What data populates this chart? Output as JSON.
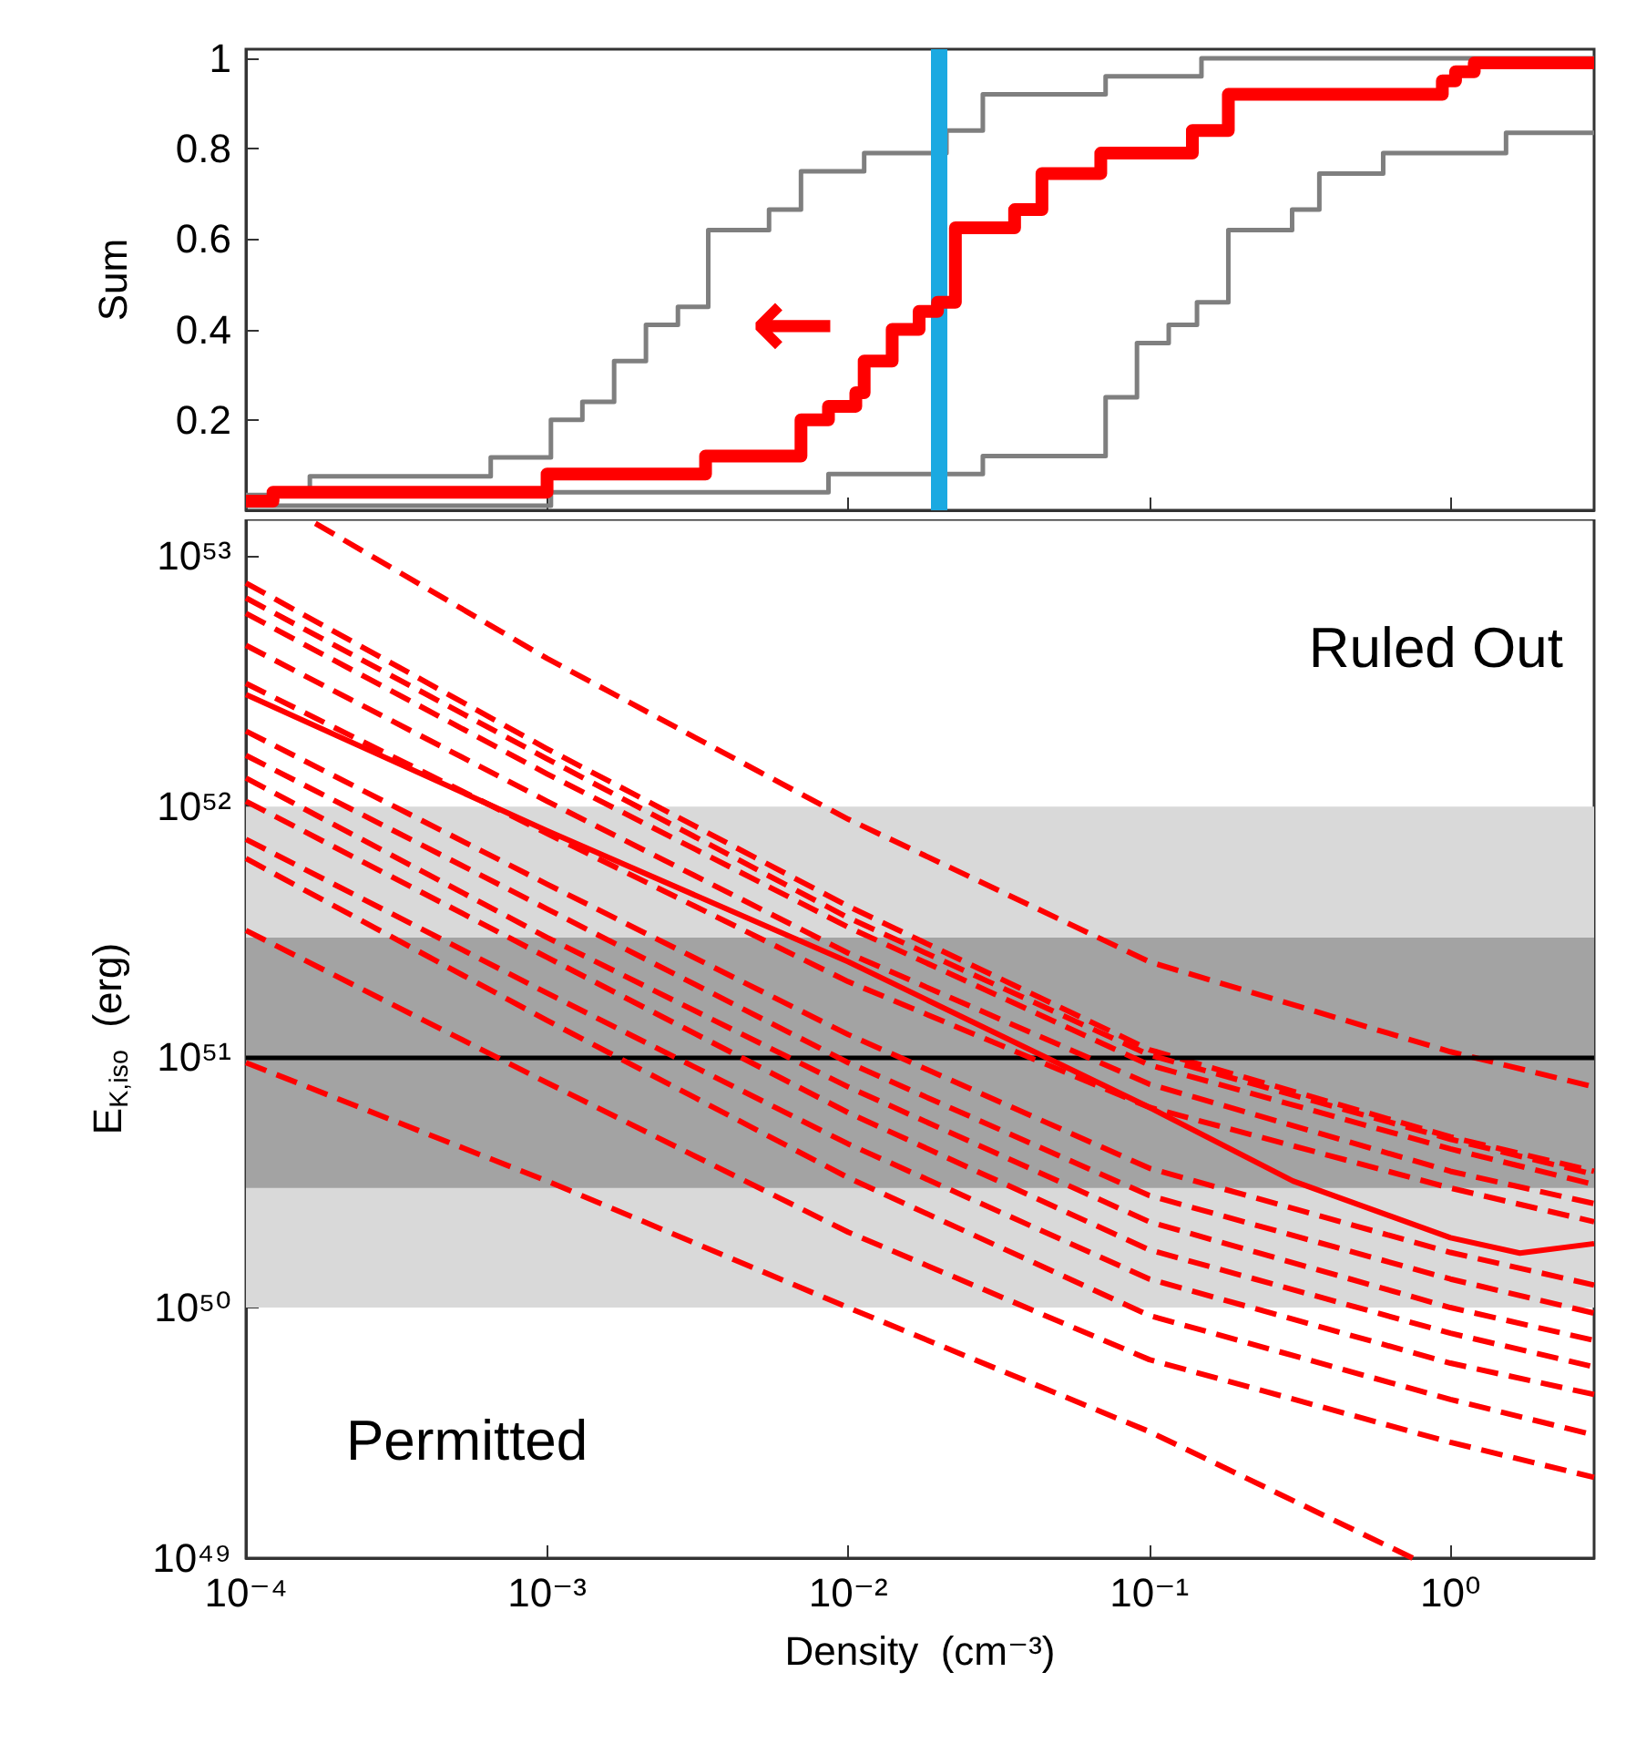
{
  "chart_data": [
    {
      "type": "step",
      "ylabel": "Sum",
      "log": "x",
      "tick_labels": "y",
      "xlim": [
        0.0001,
        3
      ],
      "xticks": [
        {
          "value": 0.0001,
          "label": null
        },
        {
          "value": 0.001,
          "label": null
        },
        {
          "value": 0.01,
          "label": null
        },
        {
          "value": 0.1,
          "label": null
        },
        {
          "value": 1,
          "label": null
        }
      ],
      "ylim": [
        0,
        1.02
      ],
      "yticks": [
        0.2,
        0.4,
        0.6,
        0.8,
        1
      ],
      "ref_lines": [
        {
          "axis": "x",
          "value": 0.02,
          "color": "#1ba9e1"
        }
      ],
      "annotations": [
        "←"
      ],
      "series": [
        {
          "color": "#7f7f7f",
          "x": [
            0.0001,
            0.000163,
            0.00065,
            0.00103,
            0.00131,
            0.00167,
            0.00213,
            0.00272,
            0.00343,
            0.00546,
            0.00697,
            0.0113,
            0.0212,
            0.028,
            0.0716,
            0.149,
            3
          ],
          "values": [
            0.034,
            0.075,
            0.117,
            0.2,
            0.24,
            0.33,
            0.41,
            0.45,
            0.62,
            0.665,
            0.75,
            0.79,
            0.84,
            0.92,
            0.96,
            1,
            1
          ]
        },
        {
          "color": "#7f7f7f",
          "x": [
            0.0001,
            0.00103,
            0.0086,
            0.028,
            0.0716,
            0.091,
            0.116,
            0.144,
            0.183,
            0.298,
            0.367,
            0.598,
            1.53,
            3
          ],
          "values": [
            0.01,
            0.04,
            0.08,
            0.12,
            0.25,
            0.37,
            0.41,
            0.46,
            0.62,
            0.665,
            0.745,
            0.79,
            0.835,
            0.835
          ]
        },
        {
          "color": "#ff0000",
          "x": [
            0.0001,
            0.000123,
            0.001,
            0.00336,
            0.00697,
            0.0086,
            0.0106,
            0.0113,
            0.014,
            0.0172,
            0.0198,
            0.0227,
            0.0357,
            0.044,
            0.069,
            0.139,
            0.183,
            0.94,
            1.04,
            1.2,
            3
          ],
          "values": [
            0.02,
            0.04,
            0.08,
            0.12,
            0.2,
            0.23,
            0.26,
            0.33,
            0.4,
            0.44,
            0.46,
            0.625,
            0.665,
            0.745,
            0.79,
            0.84,
            0.92,
            0.95,
            0.97,
            0.99,
            0.99
          ]
        }
      ]
    },
    {
      "type": "line",
      "xlabel": "Density  (cm⁻³)",
      "ylabel": "E$_{K,iso}$  (erg)",
      "log": "xy",
      "line_style": "dashed",
      "xlim": [
        0.0001,
        3
      ],
      "xticks": [
        {
          "value": 0.0001,
          "label": "10⁻⁴"
        },
        {
          "value": 0.001,
          "label": "10⁻³"
        },
        {
          "value": 0.01,
          "label": "10⁻²"
        },
        {
          "value": 0.1,
          "label": "10⁻¹"
        },
        {
          "value": 1,
          "label": "10⁰"
        }
      ],
      "ylim": [
        1e+49,
        1.4e+53
      ],
      "yticks": [
        {
          "value": 1e+49,
          "label": "10⁴⁹"
        },
        {
          "value": 1e+50,
          "label": "10⁵⁰"
        },
        {
          "value": 1e+51,
          "label": "10⁵¹"
        },
        {
          "value": 1e+52,
          "label": "10⁵²"
        },
        {
          "value": 1e+53,
          "label": "10⁵³"
        }
      ],
      "bands": [
        {
          "axis": "y",
          "from": 1e+50,
          "to": 1e+52,
          "color": "#d9d9d9"
        },
        {
          "axis": "y",
          "from": 3e+50,
          "to": 3e+51,
          "color": "#a3a3a3"
        }
      ],
      "ref_lines": [
        {
          "axis": "y",
          "value": 1e+51,
          "color": "#000000"
        }
      ],
      "annotations": [
        "Ruled Out",
        "Permitted"
      ],
      "series": [
        {
          "color": "#ff0000",
          "x": [
            0.00017,
            0.001,
            0.01,
            0.1,
            1,
            3
          ],
          "values": [
            1.35e+53,
            3.9e+52,
            8.9e+51,
            2.4e+51,
            1.05e+51,
            7.6e+50
          ]
        },
        {
          "color": "#ff0000",
          "x": [
            0.0001,
            0.001,
            0.01,
            0.1,
            1,
            3
          ],
          "values": [
            7.8e+52,
            1.7e+52,
            4e+51,
            1.07e+51,
            4.8e+50,
            3.5e+50
          ]
        },
        {
          "color": "#ff0000",
          "x": [
            0.0001,
            0.001,
            0.01,
            0.1,
            1,
            3
          ],
          "values": [
            6.8e+52,
            1.55e+52,
            3.6e+51,
            1.02e+51,
            4.7e+50,
            3.4e+50
          ]
        },
        {
          "color": "#ff0000",
          "x": [
            0.0001,
            0.001,
            0.01,
            0.1,
            1,
            3
          ],
          "values": [
            5.9e+52,
            1.35e+52,
            3.3e+51,
            9.3e+50,
            4.3e+50,
            3.1e+50
          ]
        },
        {
          "color": "#ff0000",
          "x": [
            0.0001,
            0.001,
            0.01,
            0.1,
            1,
            3
          ],
          "values": [
            4.4e+52,
            1.05e+52,
            2.6e+51,
            7.8e+50,
            3.5e+50,
            2.6e+50
          ]
        },
        {
          "color": "#ff0000",
          "x": [
            0.0001,
            0.001,
            0.01,
            0.1,
            1,
            3
          ],
          "values": [
            3.1e+52,
            7.8e+51,
            2e+51,
            6.3e+50,
            3e+50,
            2.2e+50
          ]
        },
        {
          "color": "#ff0000",
          "line_style": "solid",
          "x": [
            0.0001,
            0.001,
            0.01,
            0.1,
            0.3,
            1,
            1.7,
            3
          ],
          "values": [
            2.8e+52,
            8e+51,
            2.4e+51,
            6.3e+50,
            3.2e+50,
            1.9e+50,
            1.65e+50,
            1.8e+50
          ]
        },
        {
          "color": "#ff0000",
          "x": [
            0.0001,
            0.001,
            0.01,
            0.1,
            1,
            3
          ],
          "values": [
            2e+52,
            4.9e+51,
            1.23e+51,
            3.6e+50,
            1.66e+50,
            1.23e+50
          ]
        },
        {
          "color": "#ff0000",
          "x": [
            0.0001,
            0.001,
            0.01,
            0.1,
            1,
            3
          ],
          "values": [
            1.6e+52,
            3.9e+51,
            9.5e+50,
            2.8e+50,
            1.3e+50,
            9.5e+49
          ]
        },
        {
          "color": "#ff0000",
          "x": [
            0.0001,
            0.001,
            0.01,
            0.1,
            1,
            3
          ],
          "values": [
            1.3e+52,
            3e+51,
            7.6e+50,
            2.2e+50,
            1e+50,
            7.4e+49
          ]
        },
        {
          "color": "#ff0000",
          "x": [
            0.0001,
            0.001,
            0.01,
            0.1,
            1,
            3
          ],
          "values": [
            1.05e+52,
            2.5e+51,
            6e+50,
            1.7e+50,
            7.9e+49,
            5.8e+49
          ]
        },
        {
          "color": "#ff0000",
          "x": [
            0.0001,
            0.001,
            0.01,
            0.1,
            1,
            3
          ],
          "values": [
            7.4e+51,
            1.8e+51,
            4.5e+50,
            1.3e+50,
            6e+49,
            4.5e+49
          ]
        },
        {
          "color": "#ff0000",
          "x": [
            0.0001,
            0.001,
            0.01,
            0.1,
            1,
            3
          ],
          "values": [
            6.2e+51,
            1.4e+51,
            3.3e+50,
            9.3e+49,
            4.3e+49,
            3.1e+49
          ]
        },
        {
          "color": "#ff0000",
          "x": [
            0.0001,
            0.001,
            0.01,
            0.1,
            1,
            3
          ],
          "values": [
            3.2e+51,
            7.9e+50,
            2e+50,
            6.2e+49,
            2.9e+49,
            2.1e+49
          ]
        },
        {
          "color": "#ff0000",
          "x": [
            0.0001,
            0.001,
            0.01,
            0.1,
            0.75
          ],
          "values": [
            9.5e+50,
            3.2e+50,
            1e+50,
            3.2e+49,
            1e+49
          ]
        }
      ]
    }
  ]
}
